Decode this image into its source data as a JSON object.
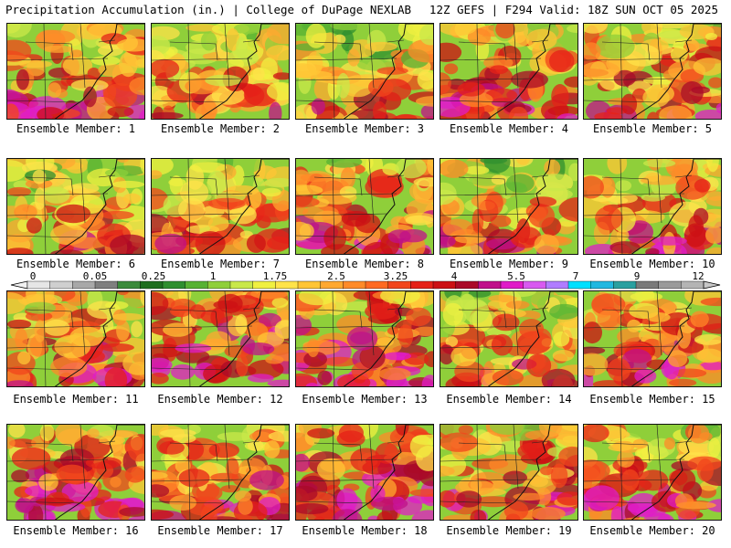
{
  "header": {
    "title_left": "Precipitation Accumulation (in.) | College of DuPage NEXLAB",
    "title_right": "12Z GEFS | F294 Valid: 18Z SUN OCT 05 2025"
  },
  "panels": [
    {
      "label": "Ensemble Member: 1",
      "intensity": 0.65
    },
    {
      "label": "Ensemble Member: 2",
      "intensity": 0.4
    },
    {
      "label": "Ensemble Member: 3",
      "intensity": 0.35
    },
    {
      "label": "Ensemble Member: 4",
      "intensity": 0.6
    },
    {
      "label": "Ensemble Member: 5",
      "intensity": 0.55
    },
    {
      "label": "Ensemble Member: 6",
      "intensity": 0.4
    },
    {
      "label": "Ensemble Member: 7",
      "intensity": 0.45
    },
    {
      "label": "Ensemble Member: 8",
      "intensity": 0.6
    },
    {
      "label": "Ensemble Member: 9",
      "intensity": 0.4
    },
    {
      "label": "Ensemble Member: 10",
      "intensity": 0.5
    },
    {
      "label": "Ensemble Member: 11",
      "intensity": 0.6
    },
    {
      "label": "Ensemble Member: 12",
      "intensity": 0.8
    },
    {
      "label": "Ensemble Member: 13",
      "intensity": 0.8
    },
    {
      "label": "Ensemble Member: 14",
      "intensity": 0.5
    },
    {
      "label": "Ensemble Member: 15",
      "intensity": 0.65
    },
    {
      "label": "Ensemble Member: 16",
      "intensity": 0.75
    },
    {
      "label": "Ensemble Member: 17",
      "intensity": 0.6
    },
    {
      "label": "Ensemble Member: 18",
      "intensity": 0.85
    },
    {
      "label": "Ensemble Member: 19",
      "intensity": 0.65
    },
    {
      "label": "Ensemble Member: 20",
      "intensity": 0.65
    }
  ],
  "colorbar": {
    "tick_labels": [
      "0",
      "0.05",
      "0.25",
      "1",
      "1.75",
      "2.5",
      "3.25",
      "4",
      "5.5",
      "7",
      "9",
      "12"
    ],
    "colors": [
      "#e6e6e6",
      "#cfcfcf",
      "#a8a8a8",
      "#7f7f7f",
      "#3b8a3b",
      "#1f6e1f",
      "#2f8f2f",
      "#57b233",
      "#8fcf3a",
      "#c9e84a",
      "#f0f040",
      "#ffe34a",
      "#ffc535",
      "#ffa830",
      "#ff8a28",
      "#ff6a22",
      "#f2461c",
      "#e52218",
      "#cc1014",
      "#aa0a28",
      "#c0108a",
      "#e01cc8",
      "#d85af0",
      "#b07cff",
      "#00e0ff",
      "#22b8e0",
      "#2aa0a0",
      "#7a7a7a",
      "#9a9a9a",
      "#b4b4b4"
    ]
  }
}
